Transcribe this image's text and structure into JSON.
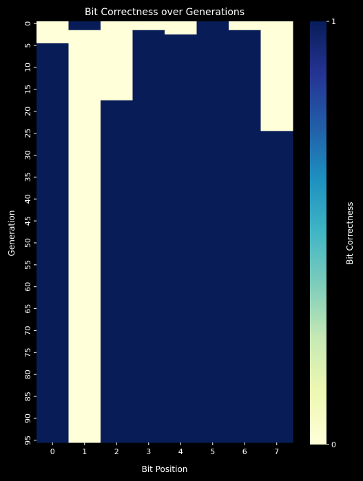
{
  "chart_data": {
    "type": "heatmap",
    "title": "Bit Correctness over Generations",
    "xlabel": "Bit Position",
    "ylabel": "Generation",
    "x_categories": [
      "0",
      "1",
      "2",
      "3",
      "4",
      "5",
      "6",
      "7"
    ],
    "y_ticks": [
      "0",
      "5",
      "10",
      "15",
      "20",
      "25",
      "30",
      "35",
      "40",
      "45",
      "50",
      "55",
      "60",
      "65",
      "70",
      "75",
      "80",
      "85",
      "90",
      "95"
    ],
    "generations": 96,
    "first_correct_generation": [
      5,
      0,
      18,
      2,
      3,
      0,
      2,
      25
    ],
    "incorrect_ranges": [
      {
        "bit": 1,
        "from": 2,
        "to": 95
      }
    ],
    "value_range": [
      0,
      1
    ],
    "colorbar": {
      "label": "Bit Correctness",
      "ticks": [
        "0",
        "1"
      ],
      "colormap": "YlGnBu",
      "stops": [
        "#ffffd9",
        "#edf8b1",
        "#c7e9b4",
        "#7fcdbb",
        "#41b6c4",
        "#1d91c0",
        "#225ea8",
        "#253494",
        "#081d58"
      ]
    },
    "colors": {
      "correct": "#081d58",
      "incorrect": "#ffffd9",
      "background": "#000000",
      "text": "#ffffff"
    }
  }
}
